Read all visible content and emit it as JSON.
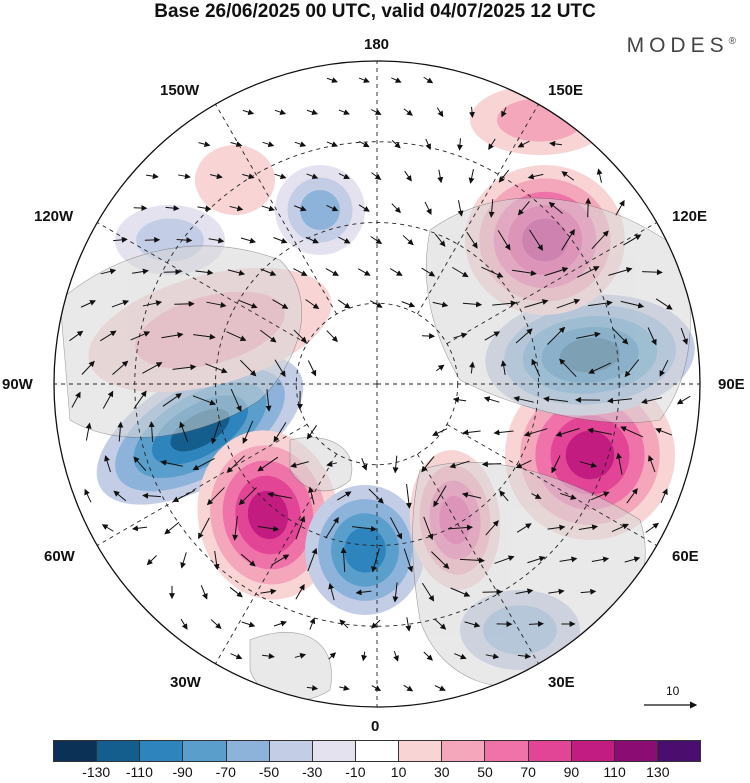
{
  "header": {
    "title": "Base 26/06/2025 00 UTC, valid 04/07/2025 12 UTC",
    "brand": "MODES",
    "brand_mark": "®"
  },
  "map": {
    "projection": "north-polar-stereographic",
    "longitude_labels": {
      "lon_180": "180",
      "lon_150e": "150E",
      "lon_120e": "120E",
      "lon_90e": "90E",
      "lon_60e": "60E",
      "lon_30e": "30E",
      "lon_0": "0",
      "lon_30w": "30W",
      "lon_60w": "60W",
      "lon_90w": "90W",
      "lon_120w": "120W",
      "lon_150w": "150W"
    },
    "reference_vector": {
      "label": "10"
    }
  },
  "colorbar": {
    "colors": [
      "#0b3256",
      "#135e8c",
      "#2e84bc",
      "#5a9fcc",
      "#8db3db",
      "#c3cde6",
      "#e4e2ef",
      "#ffffff",
      "#f8d4d5",
      "#f4a7ba",
      "#ef72a8",
      "#e34596",
      "#c31c80",
      "#8b0c72",
      "#4a0f6e"
    ],
    "tick_labels": [
      "-130",
      "-110",
      "-90",
      "-70",
      "-50",
      "-30",
      "-10",
      "10",
      "30",
      "50",
      "70",
      "90",
      "110",
      "130"
    ]
  }
}
